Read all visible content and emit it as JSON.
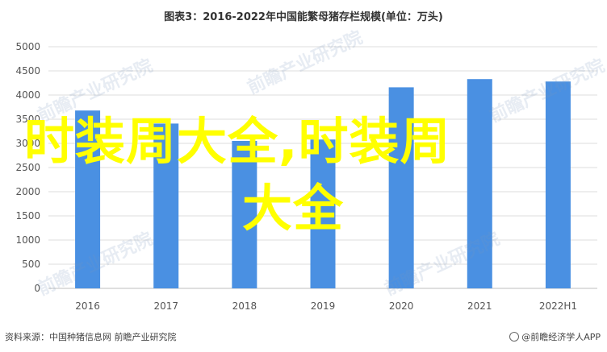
{
  "chart_data": {
    "type": "bar",
    "title": "图表3：2016-2022年中国能繁母猪存栏规模(单位：万头)",
    "categories": [
      "2016",
      "2017",
      "2018",
      "2019",
      "2020",
      "2021",
      "2022H1"
    ],
    "values": [
      3680,
      3410,
      3050,
      3080,
      4160,
      4330,
      4280
    ],
    "ylim": [
      0,
      5000
    ],
    "yticks": [
      0,
      500,
      1000,
      1500,
      2000,
      2500,
      3000,
      3500,
      4000,
      4500,
      5000
    ],
    "grid": true,
    "bar_color": "#4a90e2"
  },
  "overlay": {
    "line1": "时装周大全,时装周",
    "line2": "大全"
  },
  "watermark": "前瞻产业研究院",
  "footer": {
    "source": "资料来源：中国种猪信息网 前瞻产业研究院",
    "brand": "@前瞻经济学人APP"
  }
}
